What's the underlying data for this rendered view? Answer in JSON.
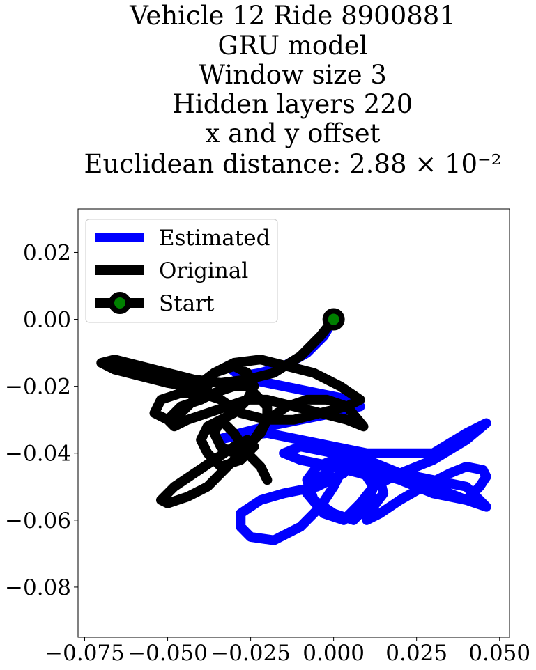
{
  "chart_data": {
    "type": "line",
    "title_lines": [
      "Vehicle 12 Ride 8900881",
      "GRU model",
      "Window size 3",
      "Hidden layers 220",
      "x and y offset",
      "Euclidean distance: 2.88 × 10⁻²"
    ],
    "xlabel": "",
    "ylabel": "",
    "xlim": [
      -0.077,
      0.053
    ],
    "ylim": [
      -0.095,
      0.033
    ],
    "xticks": [
      -0.075,
      -0.05,
      -0.025,
      0.0,
      0.025,
      0.05
    ],
    "xtick_labels": [
      "−0.075",
      "−0.050",
      "−0.025",
      "0.000",
      "0.025",
      "0.050"
    ],
    "yticks": [
      0.02,
      0.0,
      -0.02,
      -0.04,
      -0.06,
      -0.08
    ],
    "ytick_labels": [
      "0.02",
      "0.00",
      "−0.02",
      "−0.04",
      "−0.06",
      "−0.08"
    ],
    "grid": false,
    "legend_position": "top-left",
    "series": [
      {
        "name": "Estimated",
        "color": "#0000ff",
        "x": [
          0.0,
          -0.003,
          -0.008,
          -0.015,
          -0.022,
          -0.028,
          -0.032,
          -0.025,
          -0.015,
          -0.005,
          0.005,
          0.008,
          0.0,
          -0.01,
          -0.02,
          -0.028,
          -0.035,
          -0.03,
          -0.02,
          -0.01,
          0.0,
          0.01,
          0.02,
          0.03,
          0.04,
          0.046,
          0.04,
          0.03,
          0.02,
          0.012,
          0.008,
          0.003,
          -0.003,
          -0.008,
          -0.005,
          0.0,
          0.005,
          0.003,
          -0.005,
          -0.015,
          -0.022,
          -0.028,
          -0.028,
          -0.025,
          -0.018,
          -0.01,
          -0.004,
          0.0,
          0.002,
          0.003,
          0.01,
          0.015,
          0.02,
          0.025,
          0.03,
          0.035,
          0.04,
          0.046,
          0.04,
          0.03,
          0.02,
          0.01,
          0.0,
          -0.01,
          -0.015,
          -0.01,
          0.0,
          0.008,
          0.014,
          0.015,
          0.012,
          0.01,
          0.014,
          0.02,
          0.027,
          0.035,
          0.04,
          0.045,
          0.046,
          0.044,
          0.04,
          0.03,
          0.02,
          0.01,
          0.0,
          -0.005,
          -0.008,
          -0.006,
          0.0,
          0.006,
          0.01,
          0.012,
          0.008,
          0.002
        ],
        "y": [
          0.0,
          -0.005,
          -0.01,
          -0.014,
          -0.016,
          -0.017,
          -0.014,
          -0.018,
          -0.02,
          -0.022,
          -0.024,
          -0.026,
          -0.028,
          -0.03,
          -0.032,
          -0.034,
          -0.036,
          -0.035,
          -0.034,
          -0.036,
          -0.038,
          -0.04,
          -0.04,
          -0.04,
          -0.034,
          -0.031,
          -0.036,
          -0.042,
          -0.046,
          -0.05,
          -0.055,
          -0.06,
          -0.058,
          -0.052,
          -0.048,
          -0.044,
          -0.042,
          -0.046,
          -0.05,
          -0.052,
          -0.054,
          -0.058,
          -0.062,
          -0.065,
          -0.066,
          -0.062,
          -0.056,
          -0.05,
          -0.046,
          -0.044,
          -0.045,
          -0.046,
          -0.046,
          -0.047,
          -0.048,
          -0.049,
          -0.05,
          -0.056,
          -0.054,
          -0.05,
          -0.046,
          -0.042,
          -0.04,
          -0.038,
          -0.04,
          -0.042,
          -0.044,
          -0.046,
          -0.048,
          -0.052,
          -0.056,
          -0.06,
          -0.058,
          -0.054,
          -0.05,
          -0.046,
          -0.044,
          -0.045,
          -0.047,
          -0.05,
          -0.054,
          -0.052,
          -0.048,
          -0.045,
          -0.042,
          -0.044,
          -0.048,
          -0.054,
          -0.058,
          -0.06,
          -0.056,
          -0.05,
          -0.044,
          -0.04
        ]
      },
      {
        "name": "Original",
        "color": "#000000",
        "x": [
          0.0,
          -0.004,
          -0.01,
          -0.018,
          -0.026,
          -0.034,
          -0.042,
          -0.05,
          -0.058,
          -0.066,
          -0.07,
          -0.066,
          -0.058,
          -0.05,
          -0.044,
          -0.04,
          -0.036,
          -0.03,
          -0.022,
          -0.014,
          -0.006,
          0.002,
          0.008,
          0.004,
          -0.004,
          -0.012,
          -0.02,
          -0.028,
          -0.034,
          -0.04,
          -0.046,
          -0.052,
          -0.054,
          -0.05,
          -0.046,
          -0.042,
          -0.038,
          -0.036,
          -0.03,
          -0.026,
          -0.024,
          -0.026,
          -0.03,
          -0.034,
          -0.036,
          -0.034,
          -0.03,
          -0.026,
          -0.024,
          -0.02,
          -0.014,
          -0.008,
          -0.002,
          0.004,
          0.009,
          0.004,
          -0.004,
          -0.012,
          -0.02,
          -0.026,
          -0.032,
          -0.038,
          -0.044,
          -0.048,
          -0.05,
          -0.046,
          -0.04,
          -0.036,
          -0.03,
          -0.026,
          -0.024,
          -0.02,
          -0.02,
          -0.022,
          -0.026,
          -0.03,
          -0.034,
          -0.038,
          -0.044,
          -0.05,
          -0.052,
          -0.048,
          -0.042,
          -0.036,
          -0.03,
          -0.026,
          -0.024,
          -0.028,
          -0.034,
          -0.038,
          -0.04,
          -0.038,
          -0.034,
          -0.03,
          -0.026,
          -0.022,
          -0.02
        ],
        "y": [
          0.0,
          -0.005,
          -0.011,
          -0.016,
          -0.018,
          -0.019,
          -0.018,
          -0.016,
          -0.014,
          -0.012,
          -0.013,
          -0.015,
          -0.017,
          -0.019,
          -0.02,
          -0.019,
          -0.016,
          -0.013,
          -0.012,
          -0.014,
          -0.016,
          -0.02,
          -0.024,
          -0.026,
          -0.028,
          -0.03,
          -0.03,
          -0.028,
          -0.024,
          -0.022,
          -0.022,
          -0.024,
          -0.028,
          -0.03,
          -0.028,
          -0.024,
          -0.02,
          -0.016,
          -0.014,
          -0.016,
          -0.02,
          -0.024,
          -0.028,
          -0.03,
          -0.034,
          -0.038,
          -0.04,
          -0.04,
          -0.036,
          -0.03,
          -0.026,
          -0.024,
          -0.024,
          -0.026,
          -0.032,
          -0.03,
          -0.028,
          -0.026,
          -0.024,
          -0.024,
          -0.026,
          -0.028,
          -0.03,
          -0.032,
          -0.03,
          -0.026,
          -0.024,
          -0.022,
          -0.02,
          -0.02,
          -0.022,
          -0.026,
          -0.03,
          -0.034,
          -0.038,
          -0.042,
          -0.046,
          -0.05,
          -0.053,
          -0.055,
          -0.054,
          -0.05,
          -0.046,
          -0.042,
          -0.038,
          -0.036,
          -0.038,
          -0.042,
          -0.044,
          -0.04,
          -0.036,
          -0.032,
          -0.03,
          -0.034,
          -0.04,
          -0.044,
          -0.048
        ]
      }
    ],
    "start_point": {
      "name": "Start",
      "x": 0.0,
      "y": 0.0,
      "face_color": "#008000",
      "edge_color": "#000000"
    }
  }
}
